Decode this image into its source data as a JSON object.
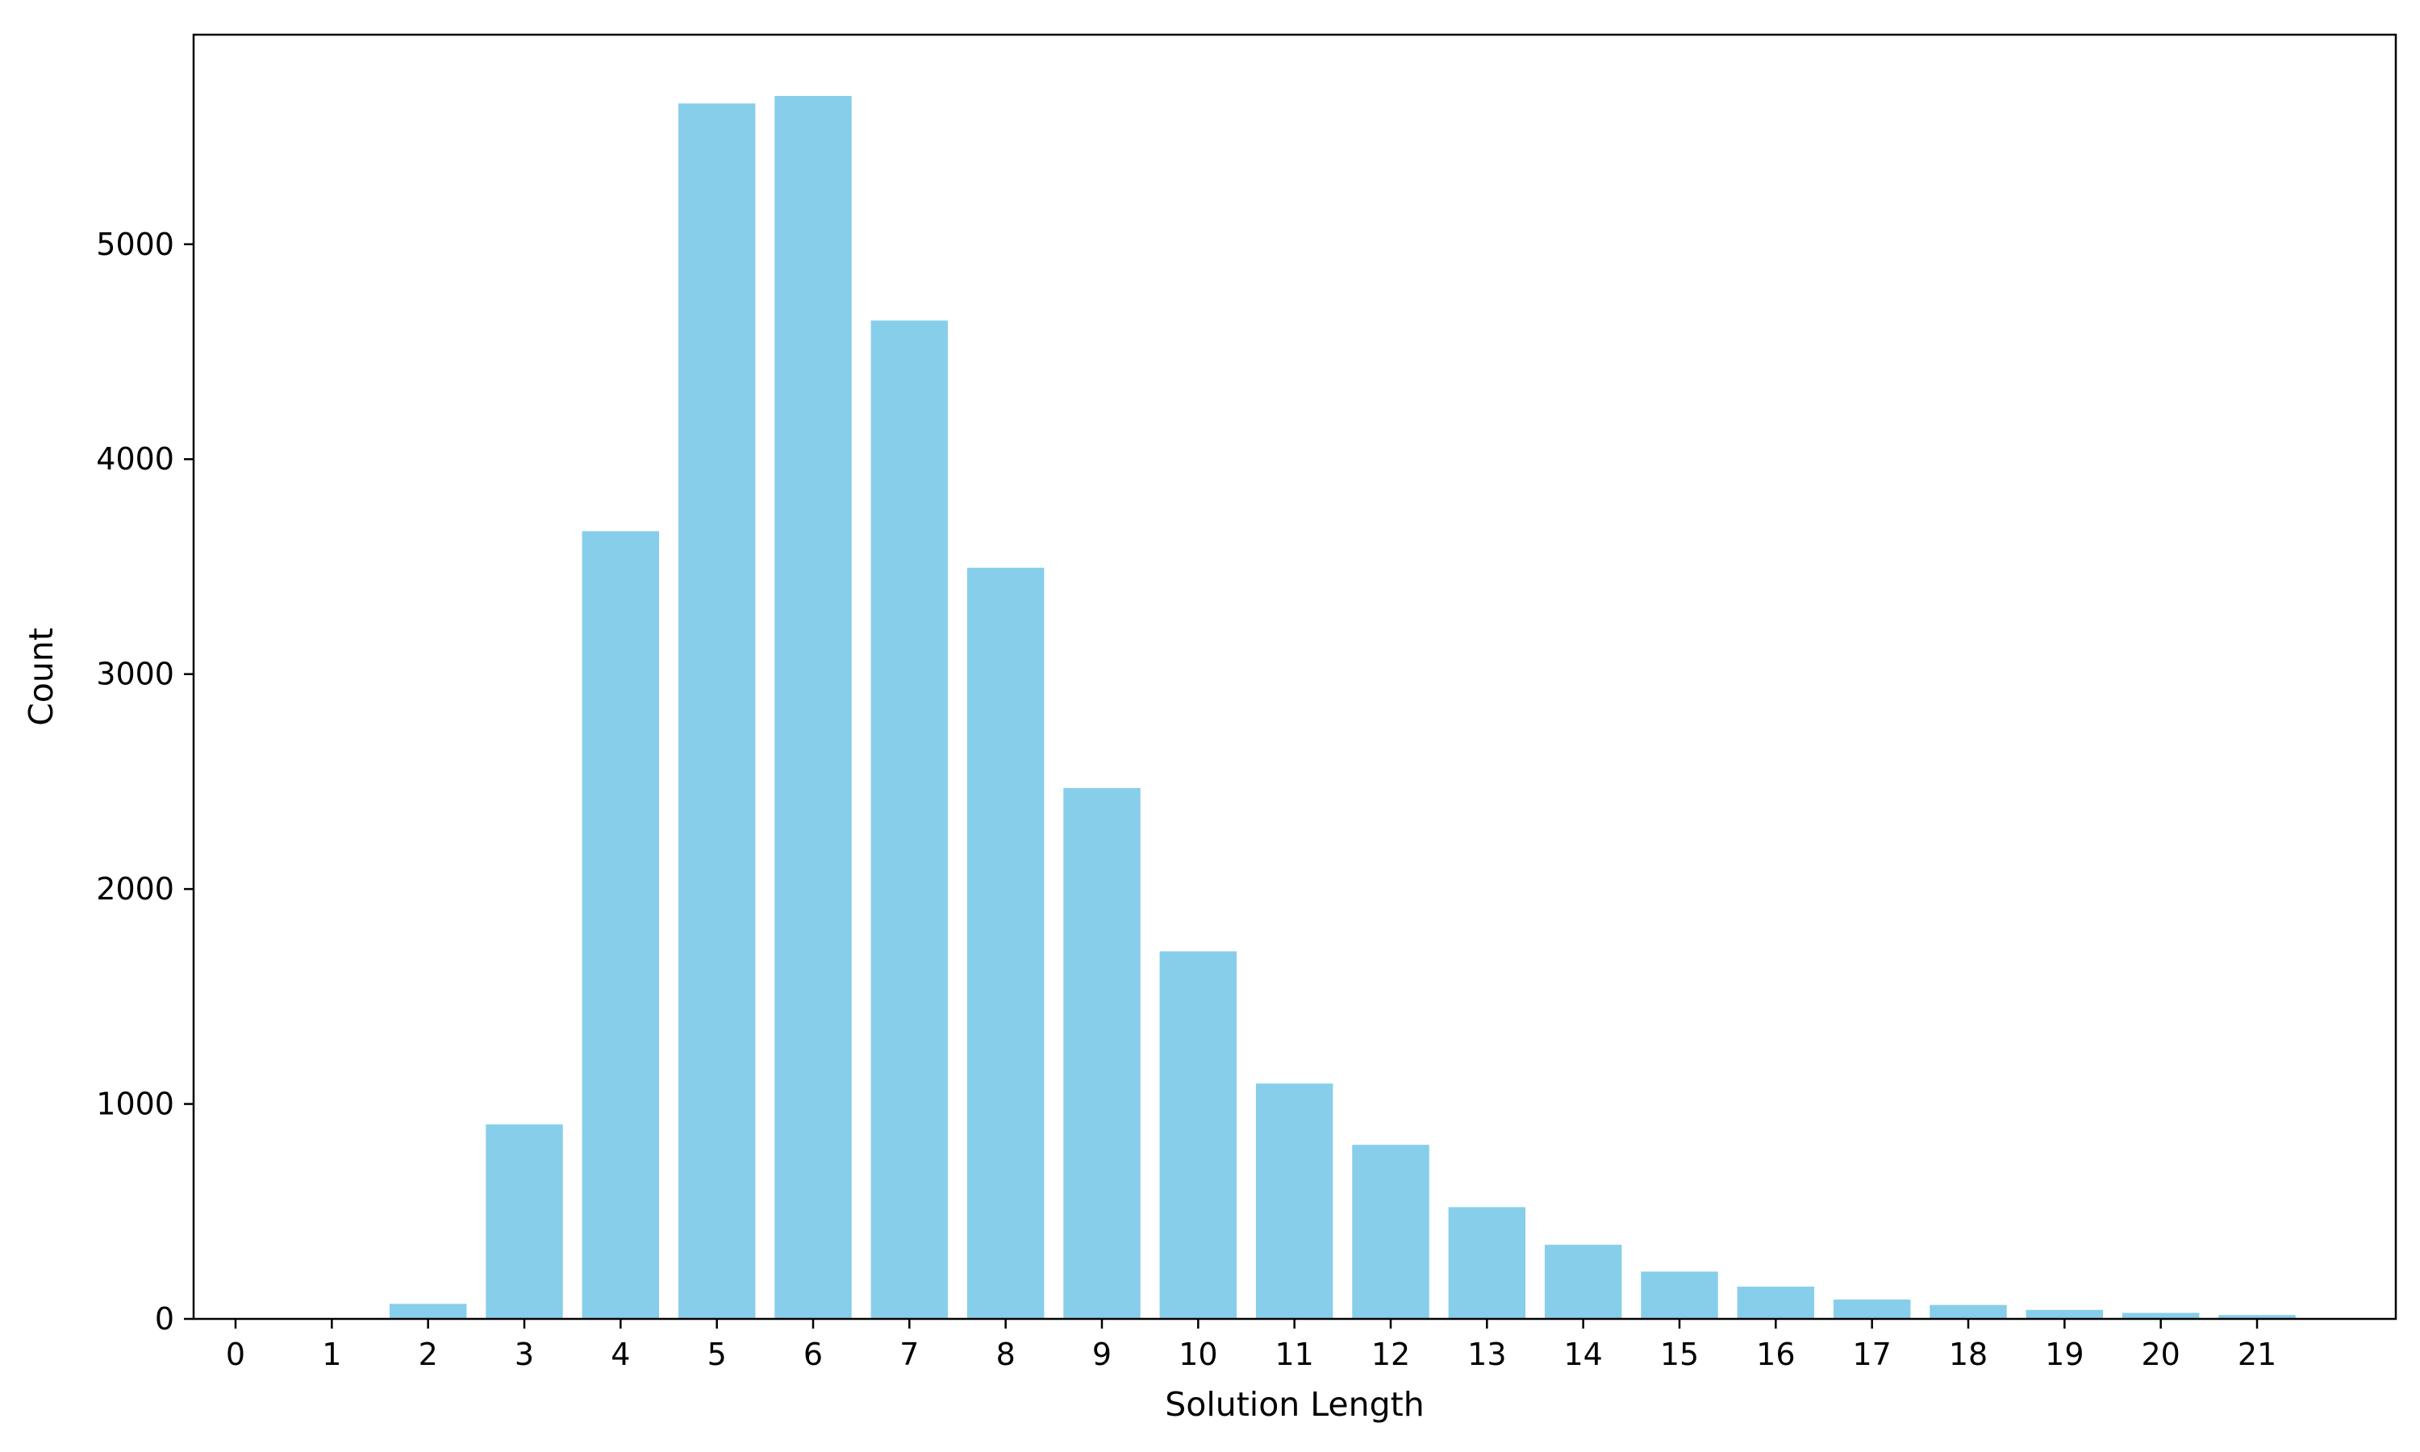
{
  "chart_data": {
    "type": "bar",
    "categories": [
      "0",
      "1",
      "2",
      "3",
      "4",
      "5",
      "6",
      "7",
      "8",
      "9",
      "10",
      "11",
      "12",
      "13",
      "14",
      "15",
      "16",
      "17",
      "18",
      "19",
      "20",
      "21"
    ],
    "values": [
      0,
      0,
      70,
      905,
      3665,
      5655,
      5690,
      4645,
      3495,
      2470,
      1710,
      1095,
      810,
      520,
      345,
      220,
      150,
      90,
      65,
      42,
      28,
      18
    ],
    "title": "",
    "xlabel": "Solution Length",
    "ylabel": "Count",
    "ylim": [
      0,
      5975
    ],
    "yticks": [
      0,
      1000,
      2000,
      3000,
      4000,
      5000
    ],
    "grid": false,
    "bar_color": "#87CEEB"
  }
}
